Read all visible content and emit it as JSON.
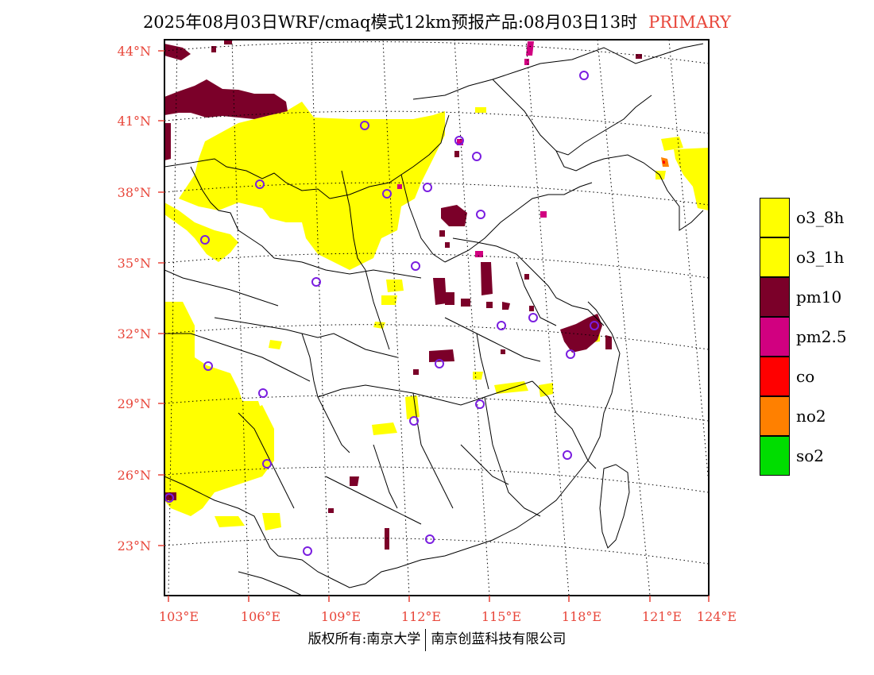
{
  "header": {
    "title": "2025年08月03日WRF/cmaq模式12km预报产品:08月03日13时",
    "pollutant_code": "PRIMARY"
  },
  "map": {
    "latitude_labels": [
      "44°N",
      "41°N",
      "38°N",
      "35°N",
      "32°N",
      "29°N",
      "26°N",
      "23°N"
    ],
    "longitude_labels": [
      "103°E",
      "106°E",
      "109°E",
      "112°E",
      "115°E",
      "118°E",
      "121°E",
      "124°E"
    ],
    "colors": {
      "o3": "#ffff00",
      "pm10": "#7b0029",
      "pm25": "#d10080",
      "co": "#ff0000",
      "no2": "#ff8000",
      "so2": "#00dd00",
      "station_marker": "#7a1ee0",
      "border": "#000000"
    }
  },
  "legend": {
    "items": [
      {
        "label": "o3_8h",
        "color": "#ffff00"
      },
      {
        "label": "o3_1h",
        "color": "#ffff00"
      },
      {
        "label": "pm10",
        "color": "#7b0029"
      },
      {
        "label": "pm2.5",
        "color": "#d10080"
      },
      {
        "label": "co",
        "color": "#ff0000"
      },
      {
        "label": "no2",
        "color": "#ff8000"
      },
      {
        "label": "so2",
        "color": "#00dd00"
      }
    ]
  },
  "footer": {
    "copyright_left": "版权所有:南京大学",
    "copyright_right": "南京创蓝科技有限公司"
  }
}
